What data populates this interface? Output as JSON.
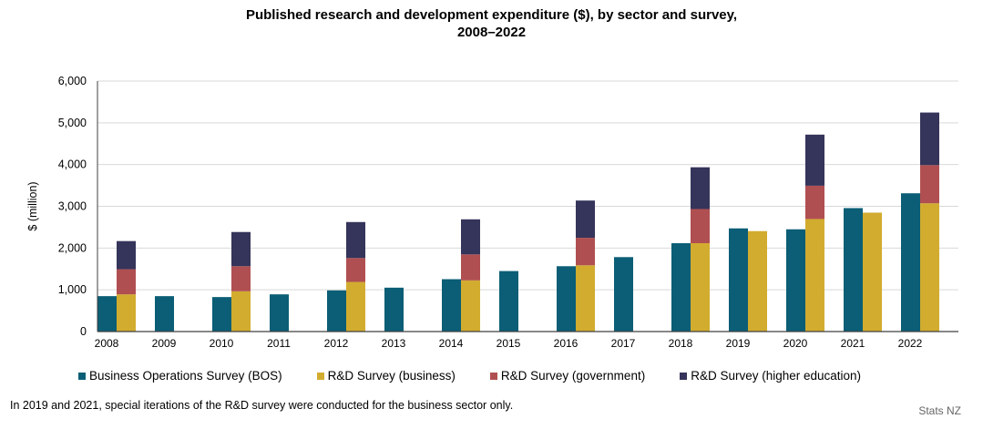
{
  "chart_data": {
    "type": "bar",
    "title_line1": "Published research and development expenditure ($), by sector and survey,",
    "title_line2": "2008–2022",
    "ylabel": "$ (million)",
    "xlabel": "",
    "ylim": [
      0,
      6000
    ],
    "yticks": [
      "0",
      "1,000",
      "2,000",
      "3,000",
      "4,000",
      "5,000",
      "6,000"
    ],
    "ytick_values": [
      0,
      1000,
      2000,
      3000,
      4000,
      5000,
      6000
    ],
    "grid": true,
    "legend_position": "bottom",
    "categories": [
      "2008",
      "2009",
      "2010",
      "2011",
      "2012",
      "2013",
      "2014",
      "2015",
      "2016",
      "2017",
      "2018",
      "2019",
      "2020",
      "2021",
      "2022"
    ],
    "series": [
      {
        "name": "Business Operations Survey (BOS)",
        "color": "#0b5e75",
        "stack": "bos",
        "values": [
          848,
          848,
          826,
          891,
          986,
          1051,
          1254,
          1449,
          1565,
          1783,
          2116,
          2471,
          2449,
          2957,
          3312
        ]
      },
      {
        "name": "R&D Survey (business)",
        "color": "#d2ac2f",
        "stack": "rd",
        "values": [
          891,
          null,
          964,
          null,
          1188,
          null,
          1225,
          null,
          1587,
          null,
          2116,
          2406,
          2696,
          2848,
          3072
        ]
      },
      {
        "name": "R&D Survey (government)",
        "color": "#b04f51",
        "stack": "rd",
        "values": [
          602,
          null,
          601,
          null,
          573,
          null,
          623,
          null,
          659,
          null,
          819,
          null,
          797,
          null,
          914
        ]
      },
      {
        "name": "R&D Survey (higher education)",
        "color": "#35345a",
        "stack": "rd",
        "values": [
          674,
          null,
          819,
          null,
          862,
          null,
          840,
          null,
          892,
          null,
          1000,
          null,
          1224,
          null,
          1260
        ]
      }
    ]
  },
  "footnote": "In 2019 and 2021, special iterations of the R&D survey were conducted for the business sector only.",
  "source": "Stats NZ"
}
